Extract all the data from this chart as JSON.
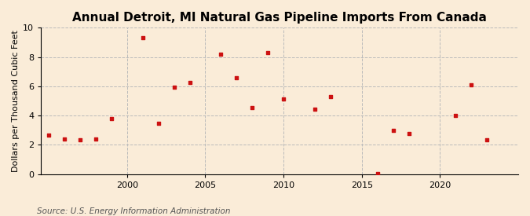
{
  "title": "Annual Detroit, MI Natural Gas Pipeline Imports From Canada",
  "ylabel": "Dollars per Thousand Cubic Feet",
  "source": "Source: U.S. Energy Information Administration",
  "background_color": "#faecd8",
  "plot_bg_color": "#faecd8",
  "marker_color": "#cc1111",
  "marker": "s",
  "marker_size": 3.5,
  "xlim": [
    1994.5,
    2025
  ],
  "ylim": [
    0,
    10
  ],
  "yticks": [
    0,
    2,
    4,
    6,
    8,
    10
  ],
  "xticks": [
    2000,
    2005,
    2010,
    2015,
    2020
  ],
  "grid_color": "#bbbbbb",
  "grid_style": "--",
  "title_fontsize": 11,
  "ylabel_fontsize": 8,
  "tick_fontsize": 8,
  "source_fontsize": 7.5,
  "data": [
    [
      1995,
      2.65
    ],
    [
      1996,
      2.4
    ],
    [
      1997,
      2.35
    ],
    [
      1998,
      2.4
    ],
    [
      1999,
      3.8
    ],
    [
      2001,
      9.3
    ],
    [
      2002,
      3.45
    ],
    [
      2003,
      5.95
    ],
    [
      2004,
      6.25
    ],
    [
      2006,
      8.2
    ],
    [
      2007,
      6.6
    ],
    [
      2008,
      4.55
    ],
    [
      2009,
      8.3
    ],
    [
      2010,
      5.15
    ],
    [
      2012,
      4.45
    ],
    [
      2013,
      5.3
    ],
    [
      2016,
      0.05
    ],
    [
      2017,
      3.0
    ],
    [
      2018,
      2.75
    ],
    [
      2021,
      4.0
    ],
    [
      2022,
      6.1
    ],
    [
      2023,
      2.35
    ]
  ]
}
